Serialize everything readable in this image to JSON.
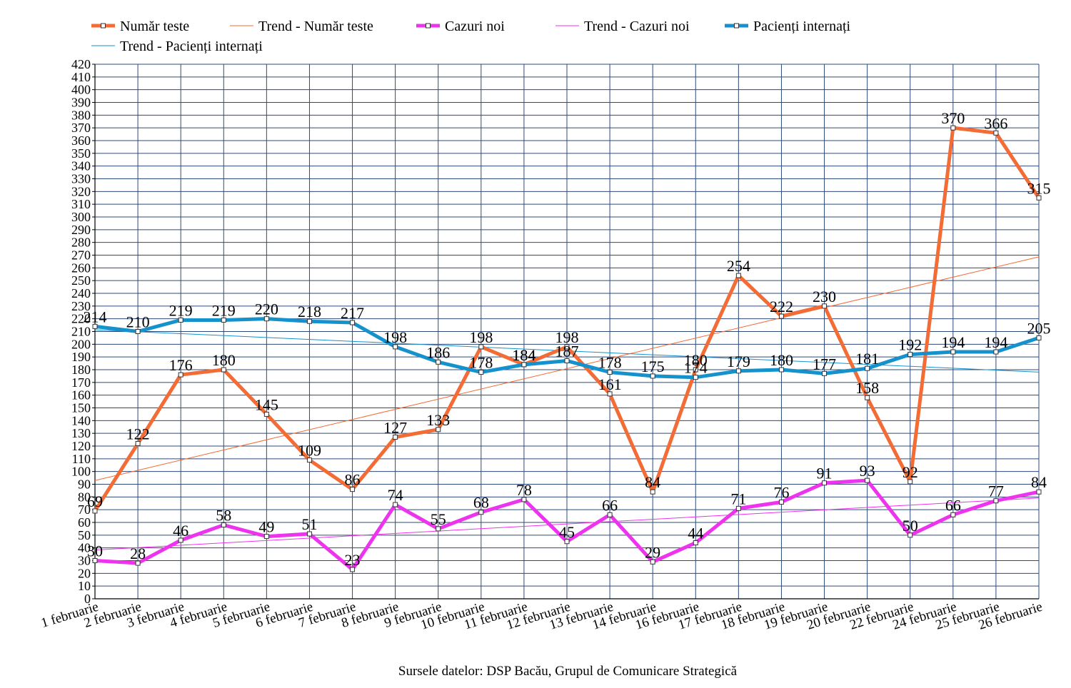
{
  "chart_data": {
    "type": "line",
    "title": "",
    "xlabel": "",
    "ylabel": "",
    "ylim": [
      0,
      420
    ],
    "ytick_step": 10,
    "grid": true,
    "legend_position": "top-left",
    "categories": [
      "1 februarie",
      "2 februarie",
      "3 februarie",
      "4 februarie",
      "5 februarie",
      "6 februarie",
      "7 februarie",
      "8 februarie",
      "9 februarie",
      "10 februarie",
      "11 februarie",
      "12 februarie",
      "13 februarie",
      "14  februarie",
      "16 februarie",
      "17 februarie",
      "18 februarie",
      "19 februarie",
      "20 februarie",
      "22 februarie",
      "24 februarie",
      "25 februarie",
      "26 februarie"
    ],
    "series": [
      {
        "name": "Număr teste",
        "color": "#f36b35",
        "kind": "data",
        "values": [
          69,
          122,
          176,
          180,
          145,
          109,
          86,
          127,
          133,
          198,
          184,
          198,
          161,
          84,
          180,
          254,
          222,
          230,
          158,
          92,
          370,
          366,
          315
        ]
      },
      {
        "name": "Trend - Număr teste",
        "color": "#f36b35",
        "kind": "trend",
        "of": "Număr teste"
      },
      {
        "name": "Cazuri noi",
        "color": "#ee33ee",
        "kind": "data",
        "values": [
          30,
          28,
          46,
          58,
          49,
          51,
          23,
          74,
          55,
          68,
          78,
          45,
          66,
          29,
          44,
          71,
          76,
          91,
          93,
          50,
          66,
          77,
          84
        ]
      },
      {
        "name": "Trend - Cazuri noi",
        "color": "#ee33ee",
        "kind": "trend",
        "of": "Cazuri noi"
      },
      {
        "name": "Pacienți internați",
        "color": "#1592cc",
        "kind": "data",
        "values": [
          214,
          210,
          219,
          219,
          220,
          218,
          217,
          198,
          186,
          178,
          184,
          187,
          178,
          175,
          174,
          179,
          180,
          177,
          181,
          192,
          194,
          194,
          205
        ]
      },
      {
        "name": "Trend - Pacienți internați",
        "color": "#1592cc",
        "kind": "trend",
        "of": "Pacienți internați"
      }
    ],
    "source_note": "Sursele datelor: DSP Bacău, Grupul de Comunicare Strategică"
  }
}
